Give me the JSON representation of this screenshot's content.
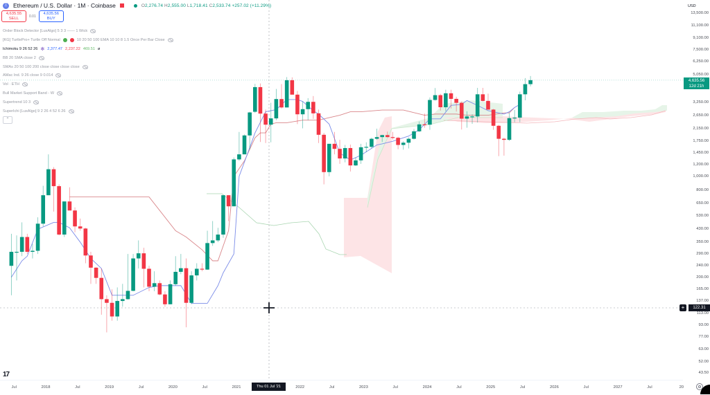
{
  "header": {
    "symbol_icon": "ethereum-icon",
    "title": "Ethereum / U.S. Dollar · 1M · Coinbase",
    "ohlc": {
      "o_label": "O",
      "o": "2,276.74",
      "h_label": "H",
      "h": "2,555.00",
      "l_label": "L",
      "l": "1,718.41",
      "c_label": "C",
      "c": "2,533.74",
      "change": "+257.02 (+11.29%)"
    }
  },
  "trade": {
    "sell_price": "4,635.55",
    "sell_label": "SELL",
    "spread": "0.01",
    "buy_price": "4,635.56",
    "buy_label": "BUY"
  },
  "legend": [
    {
      "label": "Order Block Detector [LuxAlgo] 5 3 3 —— 1 Wick",
      "icon": "eye-off-icon"
    },
    {
      "label": "[KG] TurtlePro+ Turtle Off Normal",
      "extra": "10 20 50 100 EMA 10 10 8 1.5 Once Per Bar Close",
      "icon": "eye-off-icon"
    },
    {
      "label": "Ichimoku 9 26 52 26",
      "values": [
        "2,377.47",
        "2,237.22",
        "469.51"
      ],
      "value_colors": [
        "#2962ff",
        "#f23645",
        "#66bb6a"
      ],
      "icon": "loading-icon"
    },
    {
      "label": "BB 20 SMA close 2",
      "icon": "eye-off-icon"
    },
    {
      "label": "SMAs 20 50 100 200 close close close close",
      "icon": "eye-off-icon"
    },
    {
      "label": "AMac Ind. 9 26 close 9 0.014",
      "icon": "eye-off-icon"
    },
    {
      "label": "Vol · ETH",
      "icon": "eye-off-icon"
    },
    {
      "label": "Bull Market Support Band - W",
      "icon": "eye-off-icon"
    },
    {
      "label": "Supertrend 10 3",
      "icon": "eye-off-icon"
    },
    {
      "label": "SuperIchi [LuxAlgo] 9 2 26 4 52 6 26",
      "icon": "eye-off-icon"
    }
  ],
  "price_axis": {
    "currency": "USD",
    "last_price": "4,635.56",
    "countdown": "12d 21h",
    "crosshair_price": "122.31",
    "crosshair_add": "+"
  },
  "time_axis": {
    "crosshair_label": "Thu 01 Jul '21"
  },
  "colors": {
    "up": "#089981",
    "down": "#f23645",
    "tenkan": "#7b8ce8",
    "kijun": "#d9868a",
    "lagging": "#a8d5b0",
    "cloud_up": "#e6f4e8",
    "cloud_down": "#fde4e6"
  },
  "chart_data": {
    "type": "candlestick",
    "title": "Ethereum / U.S. Dollar · 1M · Coinbase",
    "scale": "log",
    "ylabel": "USD",
    "ylim": [
      43.5,
      13500
    ],
    "y_ticks": [
      13500,
      11100,
      9100,
      7500,
      6250,
      5050,
      3250,
      2650,
      2150,
      1750,
      1450,
      1200,
      1000,
      800,
      650,
      530,
      430,
      350,
      290,
      240,
      200,
      165,
      137,
      113,
      93,
      77,
      63,
      52,
      43.5
    ],
    "y_tick_labels": [
      "13,500.00",
      "11,100.00",
      "9,100.00",
      "7,500.00",
      "6,250.00",
      "5,050.00",
      "3,250.00",
      "2,650.00",
      "2,150.00",
      "1,750.00",
      "1,450.00",
      "1,200.00",
      "1,000.00",
      "800.00",
      "650.00",
      "530.00",
      "430.00",
      "350.00",
      "290.00",
      "240.00",
      "200.00",
      "165.00",
      "137.00",
      "113.00",
      "93.00",
      "77.00",
      "63.00",
      "52.00",
      "43.50"
    ],
    "x_ticks": [
      {
        "label": "Jul",
        "m": -6
      },
      {
        "label": "2018",
        "m": 0
      },
      {
        "label": "Jul",
        "m": 6
      },
      {
        "label": "2019",
        "m": 12
      },
      {
        "label": "Jul",
        "m": 18
      },
      {
        "label": "2020",
        "m": 24
      },
      {
        "label": "Jul",
        "m": 30
      },
      {
        "label": "2021",
        "m": 36
      },
      {
        "label": "2022",
        "m": 48
      },
      {
        "label": "Jul",
        "m": 54
      },
      {
        "label": "2023",
        "m": 60
      },
      {
        "label": "Jul",
        "m": 66
      },
      {
        "label": "2024",
        "m": 72
      },
      {
        "label": "Jul",
        "m": 78
      },
      {
        "label": "2025",
        "m": 84
      },
      {
        "label": "Jul",
        "m": 90
      },
      {
        "label": "2026",
        "m": 96
      },
      {
        "label": "Jul",
        "m": 102
      },
      {
        "label": "2027",
        "m": 108
      },
      {
        "label": "Jul",
        "m": 114
      },
      {
        "label": "20",
        "m": 120
      }
    ],
    "x_start": "2017-06",
    "candles": [
      [
        240,
        400,
        150,
        300
      ],
      [
        300,
        390,
        190,
        300
      ],
      [
        300,
        480,
        280,
        380
      ],
      [
        380,
        400,
        290,
        300
      ],
      [
        300,
        340,
        270,
        305
      ],
      [
        305,
        520,
        290,
        470
      ],
      [
        470,
        860,
        450,
        740
      ],
      [
        740,
        1420,
        740,
        1120
      ],
      [
        1120,
        1160,
        570,
        855
      ],
      [
        855,
        880,
        390,
        395
      ],
      [
        395,
        570,
        380,
        670
      ],
      [
        670,
        840,
        670,
        580
      ],
      [
        580,
        610,
        410,
        450
      ],
      [
        450,
        510,
        420,
        435
      ],
      [
        435,
        440,
        250,
        283
      ],
      [
        283,
        300,
        180,
        233
      ],
      [
        233,
        235,
        180,
        198
      ],
      [
        198,
        230,
        110,
        141
      ],
      [
        141,
        150,
        83,
        133
      ],
      [
        133,
        165,
        100,
        107
      ],
      [
        107,
        170,
        100,
        137
      ],
      [
        137,
        180,
        125,
        141
      ],
      [
        141,
        290,
        140,
        161
      ],
      [
        161,
        290,
        160,
        270
      ],
      [
        270,
        360,
        230,
        293
      ],
      [
        293,
        320,
        170,
        229
      ],
      [
        229,
        240,
        160,
        172
      ],
      [
        172,
        220,
        160,
        182
      ],
      [
        182,
        190,
        150,
        152
      ],
      [
        152,
        160,
        125,
        130
      ],
      [
        130,
        190,
        130,
        179
      ],
      [
        179,
        280,
        175,
        218
      ],
      [
        218,
        290,
        210,
        231
      ],
      [
        231,
        270,
        90,
        133
      ],
      [
        133,
        220,
        130,
        206
      ],
      [
        206,
        250,
        190,
        229
      ],
      [
        229,
        250,
        220,
        226
      ],
      [
        226,
        420,
        225,
        345
      ],
      [
        345,
        490,
        330,
        360
      ],
      [
        360,
        440,
        350,
        395
      ],
      [
        395,
        690,
        375,
        740
      ],
      [
        740,
        740,
        490,
        620
      ],
      [
        620,
        1350,
        720,
        1310
      ],
      [
        1310,
        2030,
        1280,
        1420
      ],
      [
        1420,
        1950,
        1440,
        1920
      ],
      [
        1920,
        2800,
        1550,
        2770
      ],
      [
        2800,
        4370,
        2750,
        4150
      ],
      [
        4150,
        4400,
        1730,
        2720
      ],
      [
        2720,
        2900,
        1700,
        2280
      ],
      [
        2280,
        3230,
        1720,
        2520
      ],
      [
        2520,
        4030,
        2450,
        3430
      ],
      [
        3430,
        4360,
        2950,
        3000
      ],
      [
        3000,
        4870,
        3000,
        4630
      ],
      [
        4630,
        4850,
        3870,
        3680
      ],
      [
        3680,
        3900,
        2300,
        2690
      ],
      [
        2690,
        3300,
        2150,
        2920
      ],
      [
        2920,
        3480,
        2450,
        3280
      ],
      [
        3280,
        3600,
        2500,
        2730
      ],
      [
        2730,
        2900,
        1700,
        1940
      ],
      [
        1940,
        2000,
        880,
        1070
      ],
      [
        1070,
        1280,
        1000,
        1680
      ],
      [
        1680,
        2030,
        1420,
        1550
      ],
      [
        1550,
        1790,
        1220,
        1330
      ],
      [
        1330,
        1650,
        1250,
        1570
      ],
      [
        1570,
        1660,
        1080,
        1190
      ],
      [
        1190,
        1350,
        1180,
        1290
      ],
      [
        1290,
        1680,
        1220,
        1590
      ],
      [
        1590,
        1720,
        1470,
        1600
      ],
      [
        1600,
        1850,
        1560,
        1820
      ],
      [
        1820,
        2140,
        1790,
        1870
      ],
      [
        1870,
        1940,
        1730,
        1930
      ],
      [
        1930,
        2040,
        1860,
        1870
      ],
      [
        1870,
        2030,
        1800,
        1850
      ],
      [
        1850,
        1880,
        1540,
        1650
      ],
      [
        1650,
        1750,
        1530,
        1710
      ],
      [
        1710,
        1860,
        1560,
        1820
      ],
      [
        1820,
        2130,
        1800,
        2050
      ],
      [
        2050,
        2400,
        2030,
        2290
      ],
      [
        2290,
        2720,
        2170,
        2280
      ],
      [
        2280,
        3520,
        2100,
        3380
      ],
      [
        3380,
        4090,
        3350,
        3650
      ],
      [
        3650,
        3730,
        2850,
        3010
      ],
      [
        3010,
        3980,
        2820,
        3760
      ],
      [
        3760,
        3980,
        2950,
        3440
      ],
      [
        3440,
        3560,
        2810,
        3230
      ],
      [
        3230,
        3300,
        2110,
        2510
      ],
      [
        2510,
        2820,
        2170,
        2600
      ],
      [
        2600,
        2690,
        2310,
        2600
      ],
      [
        2600,
        4100,
        2360,
        3700
      ],
      [
        3700,
        4100,
        3300,
        3330
      ],
      [
        3330,
        3740,
        2900,
        2900
      ],
      [
        2900,
        2930,
        2100,
        2240
      ],
      [
        2240,
        2270,
        1380,
        1820
      ],
      [
        1820,
        1850,
        1390,
        1790
      ],
      [
        1790,
        2740,
        1760,
        2530
      ],
      [
        2530,
        2880,
        2370,
        2550
      ],
      [
        2550,
        3860,
        2370,
        3700
      ],
      [
        3700,
        4790,
        3360,
        4350
      ],
      [
        4350,
        4950,
        4200,
        4635
      ]
    ],
    "ichimoku": {
      "tenkan_pts": [
        [
          0,
          200
        ],
        [
          2,
          260
        ],
        [
          3,
          280
        ],
        [
          5,
          430
        ],
        [
          8,
          480
        ],
        [
          9,
          480
        ],
        [
          11,
          440
        ],
        [
          13,
          350
        ],
        [
          15,
          270
        ],
        [
          17,
          230
        ],
        [
          19,
          150
        ],
        [
          23,
          150
        ],
        [
          26,
          170
        ],
        [
          28,
          175
        ],
        [
          31,
          175
        ],
        [
          32,
          175
        ],
        [
          34,
          132
        ],
        [
          37,
          132
        ],
        [
          39,
          175
        ],
        [
          40,
          215
        ],
        [
          42,
          290
        ],
        [
          43,
          1000
        ],
        [
          45,
          1580
        ],
        [
          46,
          2000
        ],
        [
          48,
          2800
        ],
        [
          50,
          2900
        ],
        [
          52,
          3400
        ],
        [
          54,
          3400
        ],
        [
          55,
          3300
        ],
        [
          57,
          2850
        ],
        [
          58,
          2700
        ],
        [
          60,
          2300
        ],
        [
          62,
          1450
        ],
        [
          64,
          1300
        ],
        [
          66,
          1400
        ],
        [
          69,
          1650
        ],
        [
          70,
          1680
        ],
        [
          72,
          1750
        ],
        [
          74,
          1850
        ],
        [
          75,
          1900
        ],
        [
          77,
          2100
        ],
        [
          79,
          2500
        ],
        [
          81,
          2500
        ],
        [
          83,
          3100
        ],
        [
          85,
          3150
        ],
        [
          86,
          3350
        ],
        [
          88,
          3100
        ],
        [
          90,
          2850
        ],
        [
          92,
          2750
        ],
        [
          93,
          2700
        ],
        [
          94,
          2800
        ],
        [
          95,
          3000
        ],
        [
          96,
          3150
        ]
      ],
      "kijun_pts": [
        [
          11,
          720
        ],
        [
          23,
          720
        ],
        [
          26,
          720
        ],
        [
          31,
          420
        ],
        [
          33,
          380
        ],
        [
          36,
          310
        ],
        [
          38,
          260
        ],
        [
          39,
          260
        ],
        [
          41,
          420
        ],
        [
          42,
          1000
        ],
        [
          44,
          1280
        ],
        [
          46,
          1850
        ],
        [
          47,
          2000
        ],
        [
          48,
          2000
        ],
        [
          49,
          2300
        ],
        [
          50,
          2350
        ],
        [
          52,
          2350
        ],
        [
          55,
          2450
        ],
        [
          58,
          2450
        ],
        [
          60,
          2550
        ],
        [
          62,
          2650
        ],
        [
          64,
          2800
        ],
        [
          66,
          2800
        ],
        [
          70,
          2880
        ],
        [
          72,
          2880
        ],
        [
          74,
          2880
        ],
        [
          78,
          2650
        ],
        [
          80,
          2700
        ],
        [
          84,
          2700
        ],
        [
          86,
          2650
        ],
        [
          90,
          2650
        ],
        [
          93,
          2750
        ],
        [
          94,
          2750
        ],
        [
          95,
          3000
        ]
      ],
      "lagging_pts": [
        [
          36,
          700
        ],
        [
          38,
          650
        ],
        [
          40,
          530
        ],
        [
          42,
          460
        ],
        [
          44,
          470
        ],
        [
          46,
          430
        ],
        [
          48,
          440
        ],
        [
          50,
          430
        ],
        [
          52,
          420
        ],
        [
          54,
          390
        ],
        [
          55,
          290
        ],
        [
          57,
          260
        ],
        [
          58,
          255
        ]
      ]
    }
  }
}
